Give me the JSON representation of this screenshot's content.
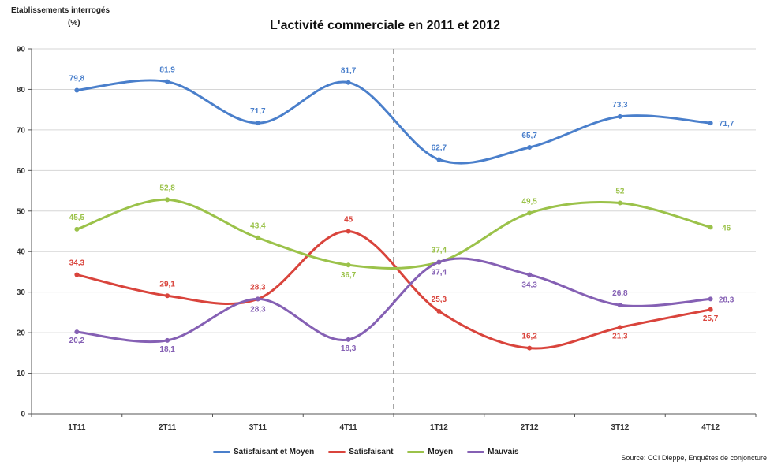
{
  "chart_data": {
    "type": "line",
    "title": "L'activité commerciale en 2011 et 2012",
    "ylabel_line1": "Etablissements interrogés",
    "ylabel_line2": "(%)",
    "ylim": [
      0,
      90
    ],
    "yticks": [
      "0",
      "10",
      "20",
      "30",
      "40",
      "50",
      "60",
      "70",
      "80",
      "90"
    ],
    "categories": [
      "1T11",
      "2T11",
      "3T11",
      "4T11",
      "1T12",
      "2T12",
      "3T12",
      "4T12"
    ],
    "grid": true,
    "legend_position": "bottom",
    "series": [
      {
        "name": "Satisfaisant et Moyen",
        "color": "#4a7fcb",
        "values": [
          79.8,
          81.9,
          71.7,
          81.7,
          62.7,
          65.7,
          73.3,
          71.7
        ],
        "labels": [
          "79,8",
          "81,9",
          "71,7",
          "81,7",
          "62,7",
          "65,7",
          "73,3",
          "71,7"
        ]
      },
      {
        "name": "Satisfaisant",
        "color": "#d9443c",
        "values": [
          34.3,
          29.1,
          28.3,
          45,
          25.3,
          16.2,
          21.3,
          25.7
        ],
        "labels": [
          "34,3",
          "29,1",
          "28,3",
          "45",
          "25,3",
          "16,2",
          "21,3",
          "25,7"
        ]
      },
      {
        "name": "Moyen",
        "color": "#9bc24a",
        "values": [
          45.5,
          52.8,
          43.4,
          36.7,
          37.4,
          49.5,
          52,
          46
        ],
        "labels": [
          "45,5",
          "52,8",
          "43,4",
          "36,7",
          "37,4",
          "49,5",
          "52",
          "46"
        ]
      },
      {
        "name": "Mauvais",
        "color": "#8560b4",
        "values": [
          20.2,
          18.1,
          28.3,
          18.3,
          37.4,
          34.3,
          26.8,
          28.3
        ],
        "labels": [
          "20,2",
          "18,1",
          "28,3",
          "18,3",
          "37,4",
          "34,3",
          "26,8",
          "28,3"
        ]
      }
    ],
    "source": "Source: CCI Dieppe, Enquêtes de conjoncture"
  }
}
